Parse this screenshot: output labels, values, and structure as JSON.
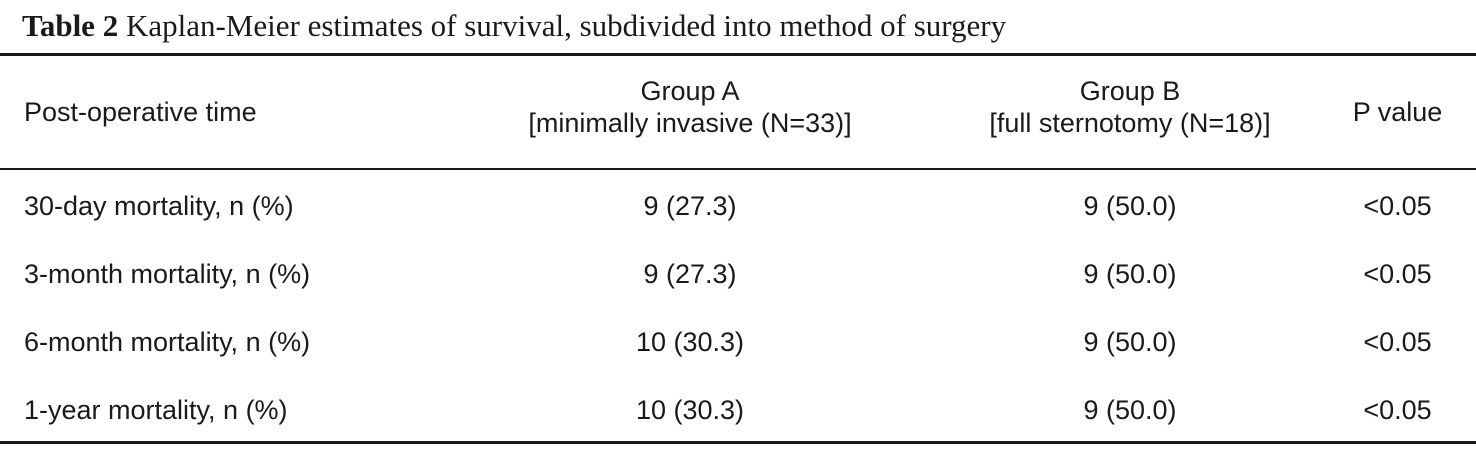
{
  "caption": {
    "label": "Table 2",
    "text": "Kaplan-Meier estimates of survival, subdivided into method of surgery"
  },
  "header": {
    "col1": "Post-operative time",
    "groupA_line1": "Group A",
    "groupA_line2": "[minimally invasive (N=33)]",
    "groupB_line1": "Group B",
    "groupB_line2": "[full sternotomy (N=18)]",
    "p": "P value"
  },
  "rows": [
    {
      "time": "30-day mortality, n (%)",
      "a": "9 (27.3)",
      "b": "9 (50.0)",
      "p": "<0.05"
    },
    {
      "time": "3-month mortality, n (%)",
      "a": "9 (27.3)",
      "b": "9 (50.0)",
      "p": "<0.05"
    },
    {
      "time": "6-month mortality, n (%)",
      "a": "10 (30.3)",
      "b": "9 (50.0)",
      "p": "<0.05"
    },
    {
      "time": "1-year mortality, n (%)",
      "a": "10 (30.3)",
      "b": "9 (50.0)",
      "p": "<0.05"
    }
  ]
}
